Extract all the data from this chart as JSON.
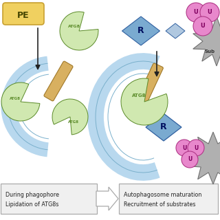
{
  "pe_label": "PE",
  "pe_color": "#f0d060",
  "pe_edge_color": "#c8a030",
  "atg8_color": "#d0e8b0",
  "atg8_edge_color": "#5a8a28",
  "membrane_color": "#b8d8ee",
  "membrane_edge_color": "#7ab0cc",
  "stem_color": "#d8b060",
  "stem_edge_color": "#a07828",
  "receptor_color": "#7aaad0",
  "receptor_edge_color": "#3060a0",
  "receptor_small_color": "#b0c8e0",
  "ubiquitin_color": "#e888cc",
  "ubiquitin_edge_color": "#b03888",
  "substrate_color": "#b0b0b0",
  "substrate_edge_color": "#707070",
  "arrow_color": "#222222",
  "box_color": "#f0f0f0",
  "box_edge_color": "#aaaaaa",
  "text_color": "#222222",
  "white": "#ffffff",
  "label1_line1": "During phagophore",
  "label1_line2": "Lipidation of ATG8s",
  "label2_line1": "Autophagosome maturation",
  "label2_line2": "Recruitment of substrates"
}
